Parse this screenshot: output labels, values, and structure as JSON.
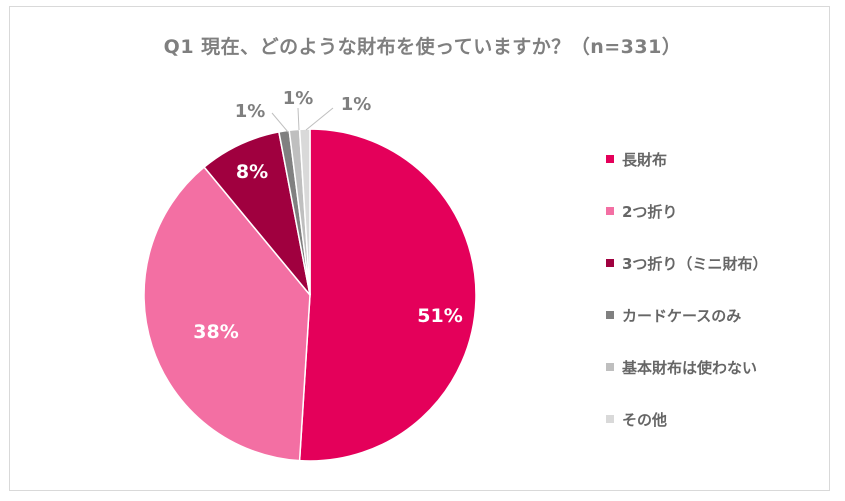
{
  "chart_data": {
    "type": "pie",
    "title": "Q1 現在、どのような財布を使っていますか？（n=331）",
    "n": 331,
    "categories": [
      "長財布",
      "2つ折り",
      "3つ折り（ミニ財布）",
      "カードケースのみ",
      "基本財布は使わない",
      "その他"
    ],
    "values": [
      51,
      38,
      8,
      1,
      1,
      1
    ],
    "labels": [
      "51%",
      "38%",
      "8%",
      "1%",
      "1%",
      "1%"
    ],
    "colors": [
      "#e4005a",
      "#f36fa3",
      "#a0003f",
      "#808080",
      "#bfbfbf",
      "#d9d9d9"
    ],
    "legend_position": "right",
    "start_angle": "12 o'clock, clockwise"
  },
  "legend": {
    "items": [
      {
        "label": "長財布",
        "color": "#e4005a"
      },
      {
        "label": "2つ折り",
        "color": "#f36fa3"
      },
      {
        "label": "3つ折り（ミニ財布）",
        "color": "#a0003f"
      },
      {
        "label": "カードケースのみ",
        "color": "#808080"
      },
      {
        "label": "基本財布は使わない",
        "color": "#bfbfbf"
      },
      {
        "label": "その他",
        "color": "#d9d9d9"
      }
    ]
  }
}
